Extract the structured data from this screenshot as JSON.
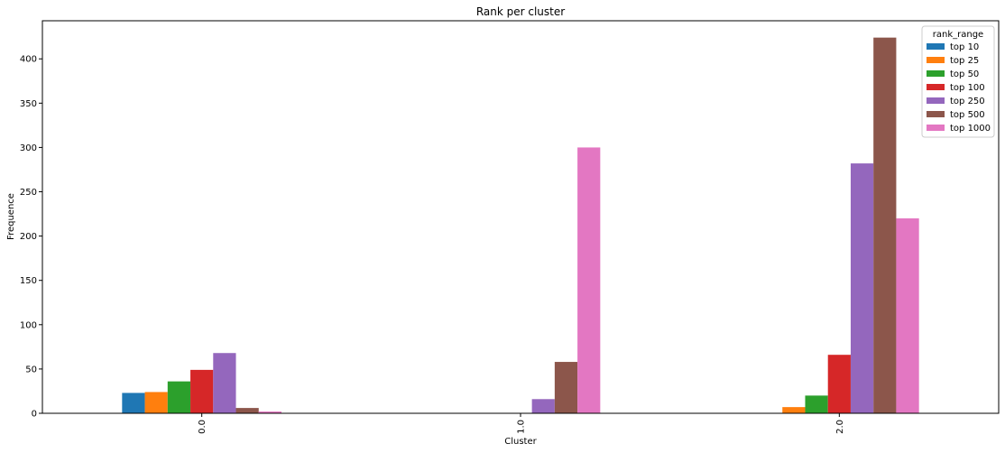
{
  "chart_data": {
    "type": "bar",
    "title": "Rank per cluster",
    "xlabel": "Cluster",
    "ylabel": "Frequence",
    "categories": [
      "0.0",
      "1.0",
      "2.0"
    ],
    "ylim": [
      0,
      443
    ],
    "yticks": [
      0,
      50,
      100,
      150,
      200,
      250,
      300,
      350,
      400
    ],
    "legend": {
      "title": "rank_range",
      "position": "top-right"
    },
    "series": [
      {
        "name": "top 10",
        "color": "#1f77b4",
        "values": [
          23,
          0,
          0
        ]
      },
      {
        "name": "top 25",
        "color": "#ff7f0e",
        "values": [
          24,
          0,
          7
        ]
      },
      {
        "name": "top 50",
        "color": "#2ca02c",
        "values": [
          36,
          0,
          20
        ]
      },
      {
        "name": "top 100",
        "color": "#d62728",
        "values": [
          49,
          0,
          66
        ]
      },
      {
        "name": "top 250",
        "color": "#9467bd",
        "values": [
          68,
          16,
          282
        ]
      },
      {
        "name": "top 500",
        "color": "#8c564b",
        "values": [
          6,
          58,
          424
        ]
      },
      {
        "name": "top 1000",
        "color": "#e377c2",
        "values": [
          2,
          300,
          220
        ]
      }
    ]
  }
}
